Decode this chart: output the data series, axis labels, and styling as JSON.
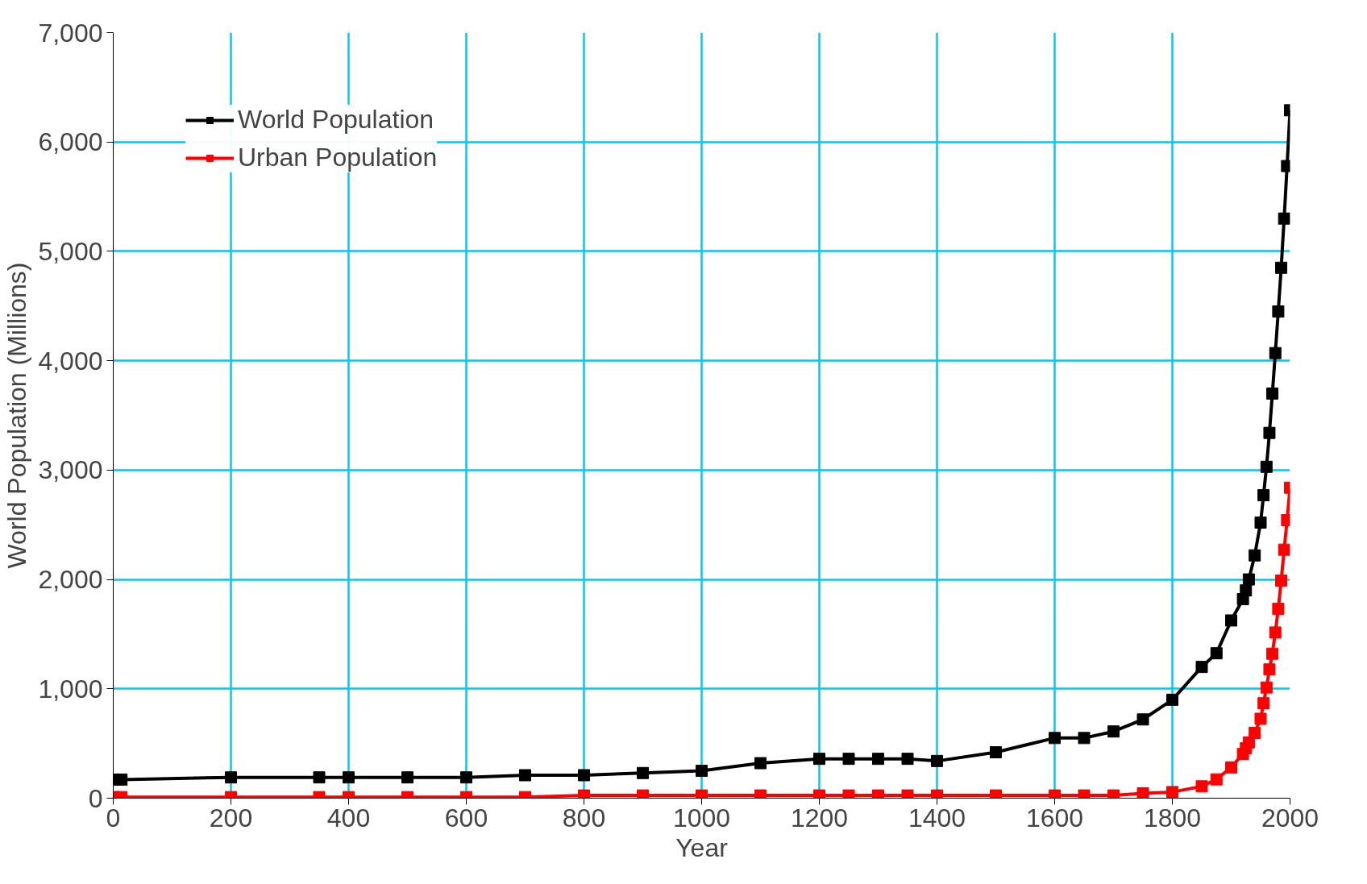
{
  "chart_data": {
    "type": "line",
    "xlabel": "Year",
    "ylabel": "World Population (Millions)",
    "x": [
      0,
      14,
      200,
      350,
      400,
      500,
      600,
      700,
      800,
      900,
      1000,
      1100,
      1200,
      1250,
      1300,
      1350,
      1400,
      1500,
      1600,
      1650,
      1700,
      1750,
      1800,
      1850,
      1875,
      1900,
      1920,
      1925,
      1930,
      1940,
      1950,
      1955,
      1960,
      1965,
      1970,
      1975,
      1980,
      1985,
      1990,
      1995,
      2000
    ],
    "series": [
      {
        "name": "World Population",
        "color": "#000000",
        "values": [
          170,
          170,
          190,
          190,
          190,
          190,
          190,
          210,
          210,
          230,
          250,
          320,
          360,
          360,
          360,
          360,
          340,
          420,
          550,
          550,
          610,
          720,
          900,
          1200,
          1325,
          1625,
          1820,
          1900,
          2000,
          2220,
          2520,
          2770,
          3030,
          3340,
          3700,
          4070,
          4450,
          4850,
          5300,
          5780,
          6290
        ]
      },
      {
        "name": "Urban Population",
        "color": "#ff0000",
        "values": [
          10,
          10,
          10,
          10,
          10,
          10,
          10,
          10,
          25,
          25,
          25,
          25,
          25,
          25,
          25,
          25,
          25,
          25,
          25,
          25,
          25,
          44,
          56,
          108,
          172,
          281,
          404,
          456,
          510,
          597,
          726,
          868,
          1012,
          1177,
          1321,
          1515,
          1731,
          1989,
          2272,
          2542,
          2839
        ]
      }
    ],
    "xlim": [
      0,
      2000
    ],
    "ylim": [
      0,
      7000
    ],
    "xticks": [
      0,
      200,
      400,
      600,
      800,
      1000,
      1200,
      1400,
      1600,
      1800,
      2000
    ],
    "yticks": [
      0,
      {
        "value": 1000,
        "label": "1,000"
      },
      {
        "value": 2000,
        "label": "2,000"
      },
      {
        "value": 3000,
        "label": "3,000"
      },
      {
        "value": 4000,
        "label": "4,000"
      },
      {
        "value": 5000,
        "label": "5,000"
      },
      {
        "value": 6000,
        "label": "6,000"
      },
      {
        "value": 7000,
        "label": "7,000"
      }
    ],
    "grid": true,
    "legend": "top left",
    "marker": "square",
    "line_style": "solid"
  }
}
